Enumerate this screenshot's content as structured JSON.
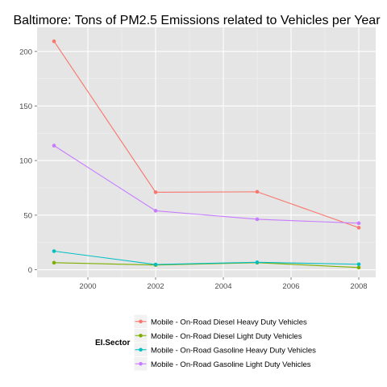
{
  "chart_data": {
    "type": "line",
    "title": "Baltimore: Tons of PM2.5 Emissions related to Vehicles per Year",
    "xlabel": "",
    "ylabel": "",
    "x": [
      1999,
      2002,
      2005,
      2008
    ],
    "xlim": [
      1998.5,
      2008.5
    ],
    "ylim": [
      -7,
      222
    ],
    "x_ticks": [
      2000,
      2002,
      2004,
      2006,
      2008
    ],
    "y_ticks": [
      0,
      50,
      100,
      150,
      200
    ],
    "grid": true,
    "legend": {
      "title": "EI.Sector",
      "placement": "bottom"
    },
    "series": [
      {
        "name": "Mobile - On-Road Diesel Heavy Duty Vehicles",
        "color": "#F8766D",
        "values": [
          209.3,
          71.0,
          71.4,
          38.5
        ]
      },
      {
        "name": "Mobile - On-Road Diesel Light Duty Vehicles",
        "color": "#7CAE00",
        "values": [
          6.4,
          4.3,
          6.4,
          2.0
        ]
      },
      {
        "name": "Mobile - On-Road Gasoline Heavy Duty Vehicles",
        "color": "#00BFC4",
        "values": [
          17.0,
          4.8,
          6.8,
          5.0
        ]
      },
      {
        "name": "Mobile - On-Road Gasoline Light Duty Vehicles",
        "color": "#C77CFF",
        "values": [
          113.7,
          54.0,
          46.2,
          42.6
        ]
      }
    ]
  }
}
